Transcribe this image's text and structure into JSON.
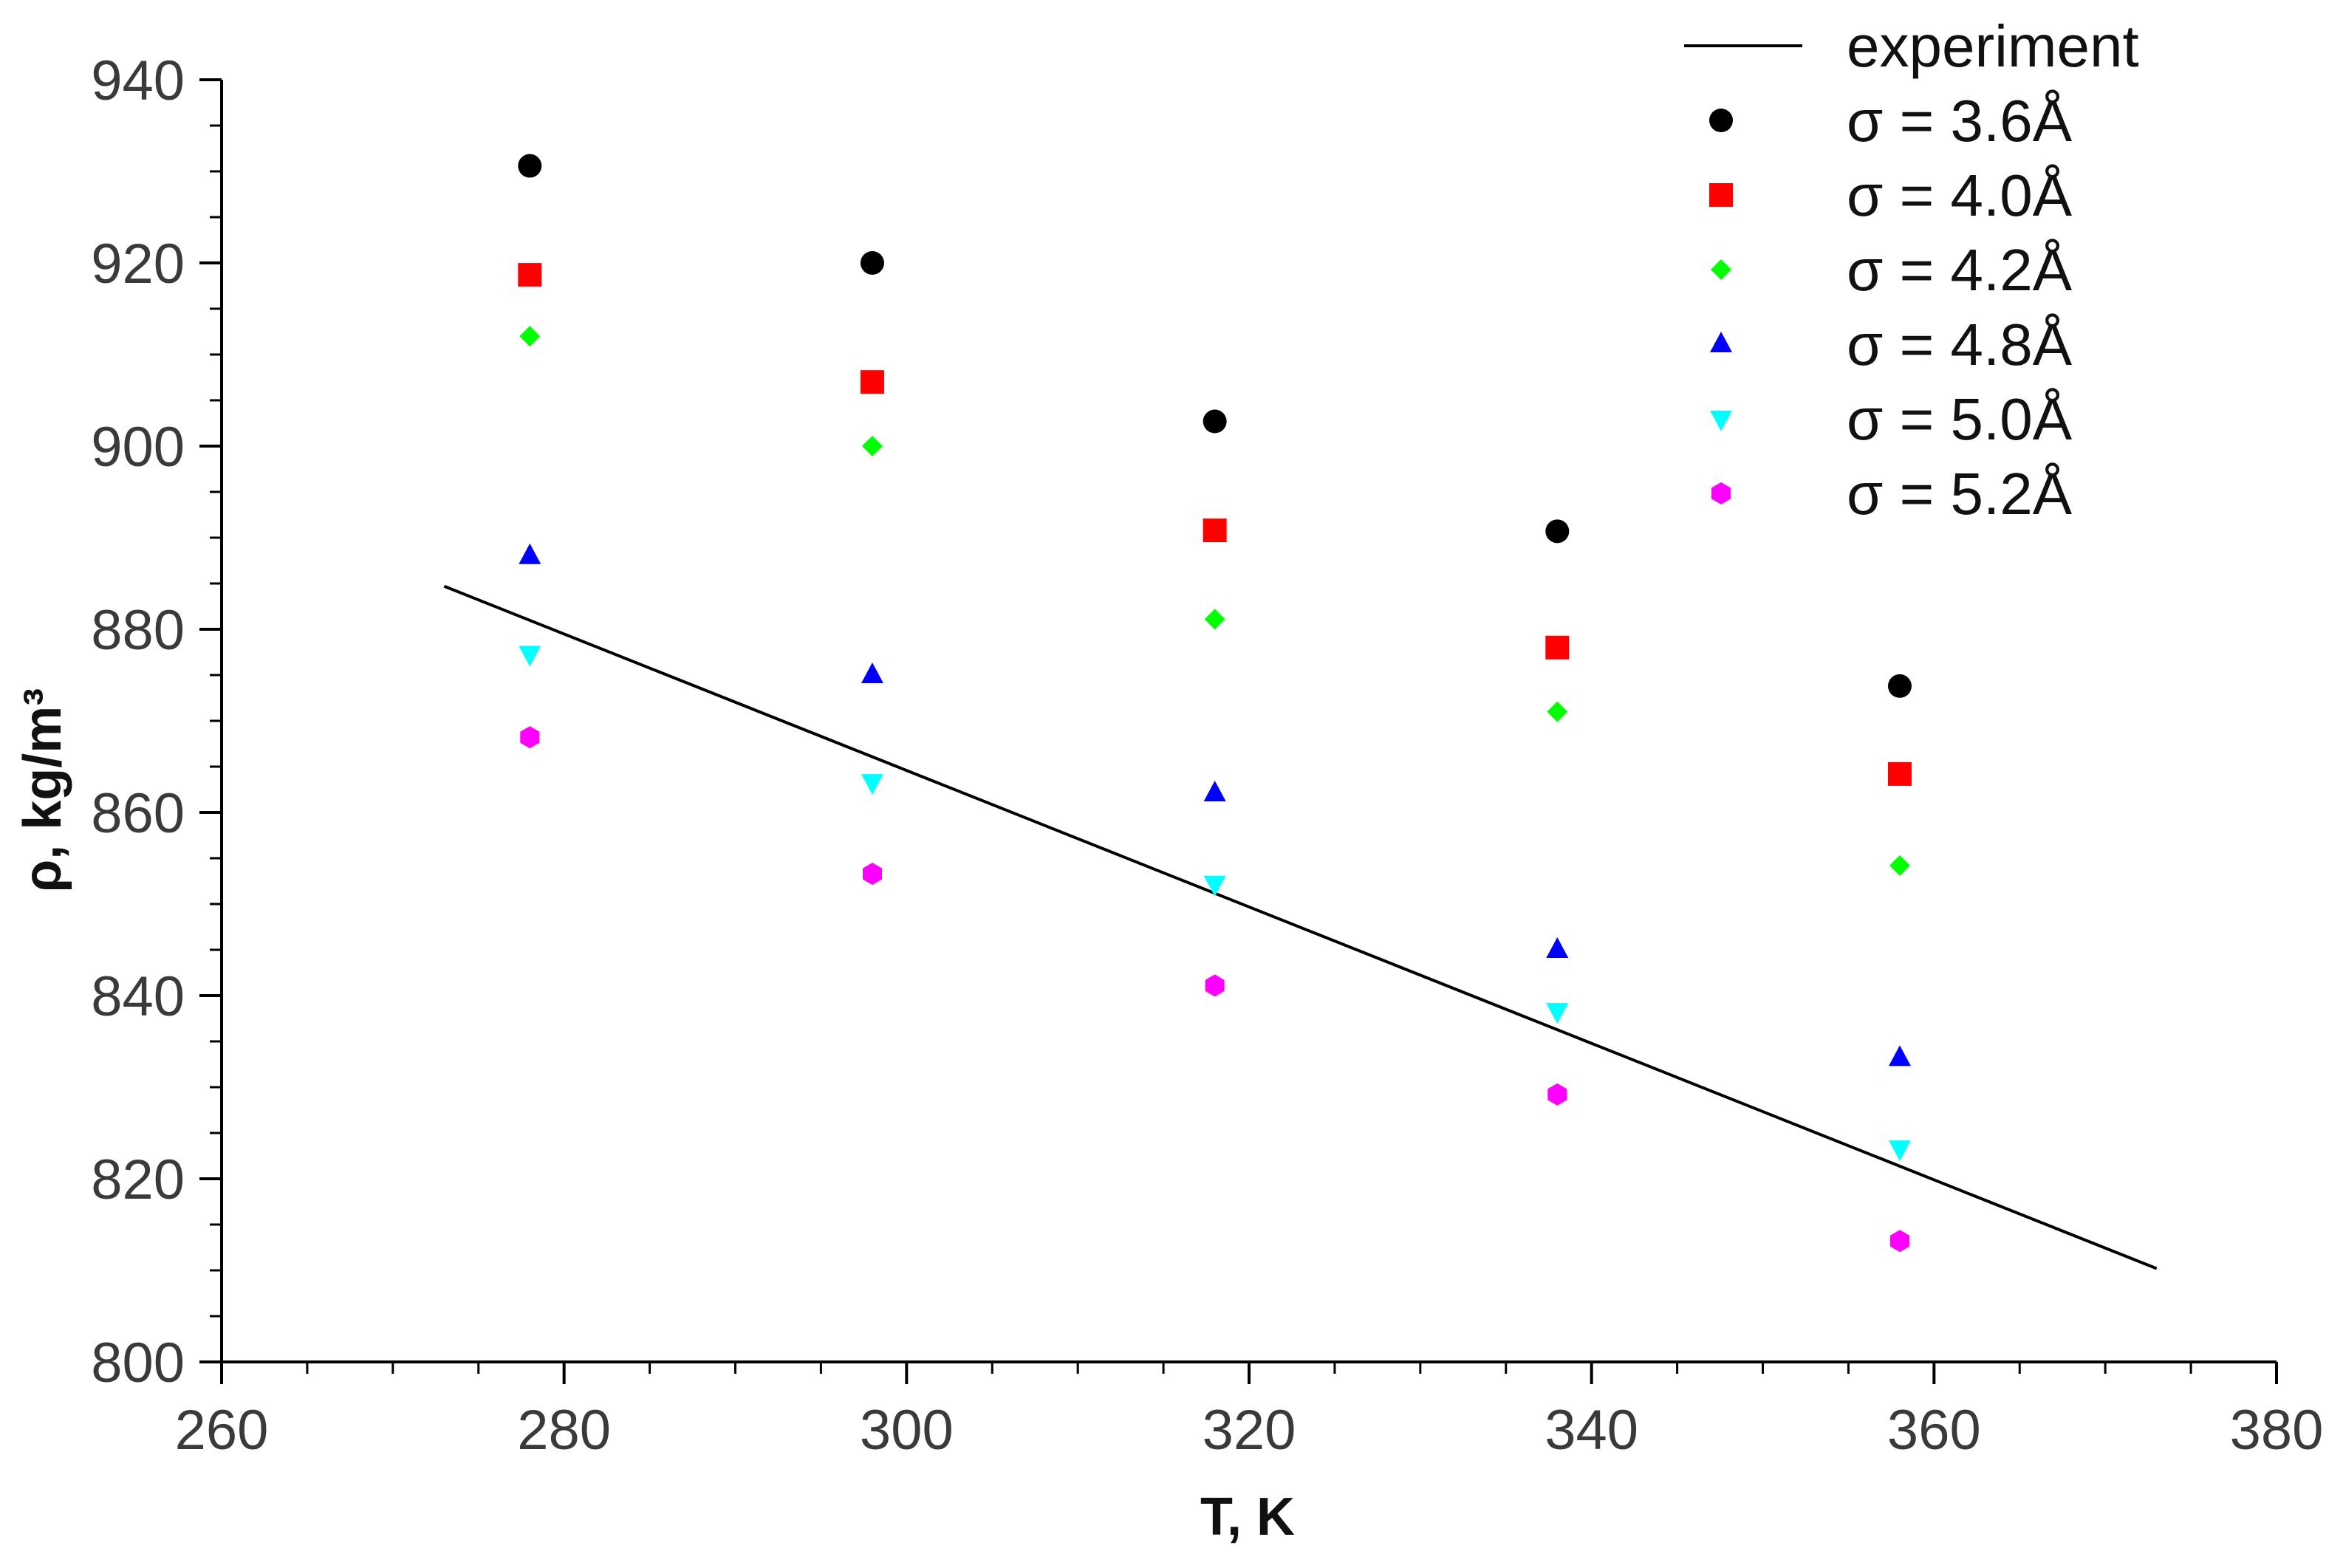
{
  "chart_data": {
    "type": "scatter",
    "xlabel": "T, K",
    "ylabel": "ρ, kg/m³",
    "xlim": [
      260,
      380
    ],
    "ylim": [
      800,
      940
    ],
    "xticks": [
      260,
      280,
      300,
      320,
      340,
      360,
      380
    ],
    "yticks": [
      800,
      820,
      840,
      860,
      880,
      900,
      920,
      940
    ],
    "x_minor_step": 5,
    "y_minor_step": 5,
    "grid": false,
    "legend_position": "top-right",
    "line": {
      "name": "experiment",
      "color": "#000000",
      "x": [
        273,
        373
      ],
      "y": [
        884.7,
        810.2
      ]
    },
    "series": [
      {
        "name": "σ = 3.6Å",
        "marker": "circle",
        "color": "#000000",
        "x": [
          278,
          298,
          318,
          338,
          358
        ],
        "y": [
          930.6,
          920.0,
          902.7,
          890.7,
          873.8
        ]
      },
      {
        "name": "σ = 4.0Å",
        "marker": "square",
        "color": "#ff0000",
        "x": [
          278,
          298,
          318,
          338,
          358
        ],
        "y": [
          918.7,
          907.0,
          890.8,
          878.0,
          864.2
        ]
      },
      {
        "name": "σ = 4.2Å",
        "marker": "diamond",
        "color": "#00ff00",
        "x": [
          278,
          298,
          318,
          338,
          358
        ],
        "y": [
          912.0,
          900.0,
          881.1,
          871.0,
          854.2
        ]
      },
      {
        "name": "σ = 4.8Å",
        "marker": "triangle-up",
        "color": "#0000ff",
        "x": [
          278,
          298,
          318,
          338,
          358
        ],
        "y": [
          888.0,
          875.0,
          862.1,
          845.0,
          833.2
        ]
      },
      {
        "name": "σ = 5.0Å",
        "marker": "triangle-down",
        "color": "#00ffff",
        "x": [
          278,
          298,
          318,
          338,
          358
        ],
        "y": [
          877.3,
          863.3,
          852.2,
          838.3,
          823.3
        ]
      },
      {
        "name": "σ = 5.2Å",
        "marker": "hexagon",
        "color": "#ff00ff",
        "x": [
          278,
          298,
          318,
          338,
          358
        ],
        "y": [
          868.2,
          853.3,
          841.1,
          829.2,
          813.2
        ]
      }
    ]
  }
}
